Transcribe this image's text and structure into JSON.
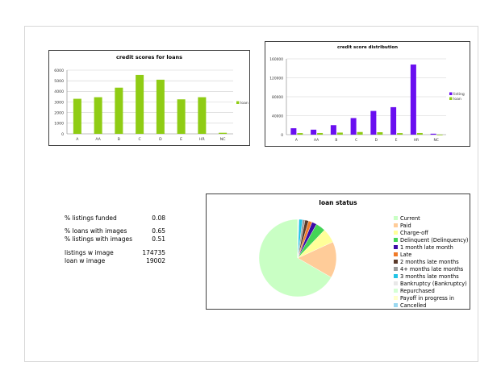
{
  "chart_data": [
    {
      "type": "bar",
      "title": "credit scores for loans",
      "categories": [
        "A",
        "AA",
        "B",
        "C",
        "D",
        "E",
        "HR",
        "NC"
      ],
      "series": [
        {
          "name": "loan",
          "values": [
            3300,
            3450,
            4350,
            5550,
            5100,
            3250,
            3450,
            100
          ],
          "color": "#8fcc14"
        }
      ],
      "yticks": [
        "6000",
        "5000",
        "4000",
        "3000",
        "2000",
        "1000",
        "0"
      ],
      "ylim": [
        0,
        6000
      ],
      "grid": true,
      "legend": "right"
    },
    {
      "type": "bar",
      "title": "credit score distribution",
      "categories": [
        "A",
        "AA",
        "B",
        "C",
        "D",
        "E",
        "HR",
        "NC"
      ],
      "series": [
        {
          "name": "listing",
          "values": [
            13500,
            10500,
            20000,
            35000,
            50000,
            58000,
            148000,
            2000
          ],
          "color": "#6a0ff0"
        },
        {
          "name": "loan",
          "values": [
            3300,
            3450,
            4350,
            5550,
            5100,
            3250,
            3450,
            100
          ],
          "color": "#8fcc14"
        }
      ],
      "yticks": [
        "160000",
        "120000",
        "80000",
        "40000",
        "0"
      ],
      "ylim": [
        0,
        160000
      ],
      "grid": true,
      "legend": "right"
    },
    {
      "type": "pie",
      "title": "loan status",
      "legend": "right",
      "slices": [
        {
          "label": "Current",
          "value": 66,
          "color": "#c9ffc4"
        },
        {
          "label": "Paid",
          "value": 15,
          "color": "#ffcc99"
        },
        {
          "label": "Charge-off",
          "value": 6,
          "color": "#ffff99"
        },
        {
          "label": "Delinquent (Delinquency)",
          "value": 4,
          "color": "#44d456"
        },
        {
          "label": "1 month late month",
          "value": 2,
          "color": "#3c0ba6"
        },
        {
          "label": "Late",
          "value": 1.5,
          "color": "#f07a28"
        },
        {
          "label": "2 months late months",
          "value": 1.5,
          "color": "#5a3a2a"
        },
        {
          "label": "4+ months late months",
          "value": 1,
          "color": "#9a9a9a"
        },
        {
          "label": "3 months late months",
          "value": 1.5,
          "color": "#22c4e6"
        },
        {
          "label": "Bankruptcy (Bankruptcy)",
          "value": 0.2,
          "color": "#e8e8e8"
        },
        {
          "label": "Repurchased",
          "value": 0.1,
          "color": "#d4ffd4"
        },
        {
          "label": "Payoff in progress in",
          "value": 0.1,
          "color": "#ffffcc"
        },
        {
          "label": "Cancelled",
          "value": 0.1,
          "color": "#9ad8f0"
        }
      ]
    }
  ],
  "stats": {
    "listings_funded": {
      "label": "% listings funded",
      "value": "0.08"
    },
    "loans_with_images": {
      "label": "% loans with images",
      "value": "0.65"
    },
    "listings_with_images": {
      "label": "% listings with images",
      "value": "0.51"
    },
    "listings_w_image": {
      "label": "listings w image",
      "value": "174735"
    },
    "loan_w_image": {
      "label": "loan w image",
      "value": "19002"
    }
  }
}
